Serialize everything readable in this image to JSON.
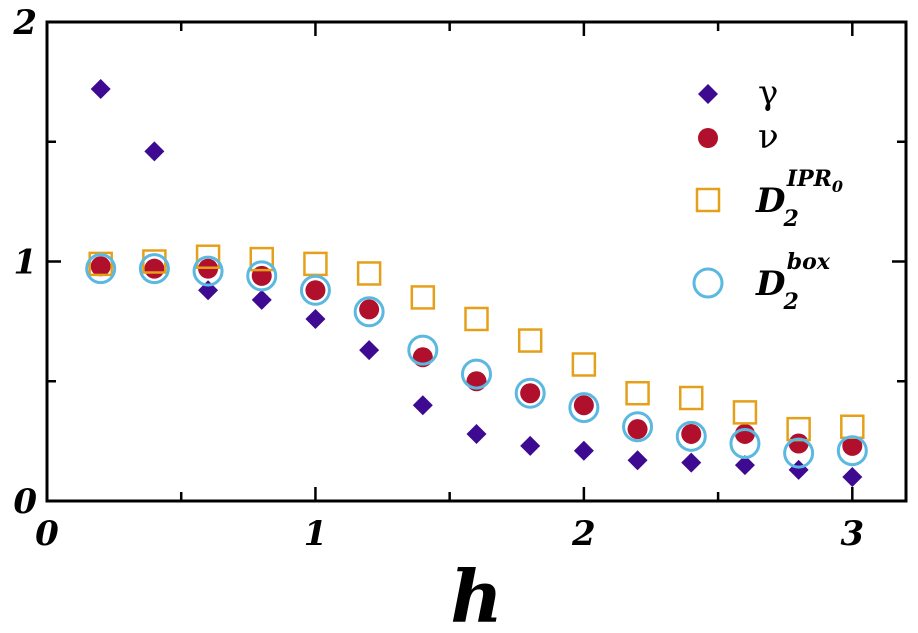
{
  "chart_data": {
    "type": "scatter",
    "title": "",
    "xlabel": "h",
    "ylabel": "",
    "xlim": [
      0,
      3.2
    ],
    "ylim": [
      0,
      2
    ],
    "x_ticks": [
      "0",
      "1",
      "2",
      "3"
    ],
    "y_ticks": [
      "0",
      "1",
      "2"
    ],
    "legend_position": "top-right",
    "series": [
      {
        "name": "γ",
        "marker": "diamond",
        "color": "#3d0a91",
        "x": [
          0.2,
          0.4,
          0.6,
          0.8,
          1.0,
          1.2,
          1.4,
          1.6,
          1.8,
          2.0,
          2.2,
          2.4,
          2.6,
          2.8,
          3.0
        ],
        "y": [
          1.72,
          1.46,
          0.88,
          0.84,
          0.76,
          0.63,
          0.4,
          0.28,
          0.23,
          0.21,
          0.17,
          0.16,
          0.15,
          0.13,
          0.1
        ]
      },
      {
        "name": "ν",
        "marker": "filled-circle",
        "color": "#b0102b",
        "x": [
          0.2,
          0.4,
          0.6,
          0.8,
          1.0,
          1.2,
          1.4,
          1.6,
          1.8,
          2.0,
          2.2,
          2.4,
          2.6,
          2.8,
          3.0
        ],
        "y": [
          0.98,
          0.97,
          0.97,
          0.94,
          0.88,
          0.8,
          0.6,
          0.5,
          0.45,
          0.4,
          0.3,
          0.28,
          0.28,
          0.24,
          0.23
        ]
      },
      {
        "name": "D2 IPR0",
        "label_main": "D",
        "label_sub": "2",
        "label_sup": "IPR",
        "label_sup_sub": "0",
        "marker": "open-square",
        "color": "#e5a01a",
        "x": [
          0.2,
          0.4,
          0.6,
          0.8,
          1.0,
          1.2,
          1.4,
          1.6,
          1.8,
          2.0,
          2.2,
          2.4,
          2.6,
          2.8,
          3.0
        ],
        "y": [
          0.99,
          1.0,
          1.02,
          1.01,
          0.99,
          0.95,
          0.85,
          0.76,
          0.67,
          0.57,
          0.45,
          0.43,
          0.37,
          0.3,
          0.31
        ]
      },
      {
        "name": "D2 box",
        "label_main": "D",
        "label_sub": "2",
        "label_sup": "box",
        "marker": "open-circle",
        "color": "#5bb8e0",
        "x": [
          0.2,
          0.4,
          0.6,
          0.8,
          1.0,
          1.2,
          1.4,
          1.6,
          1.8,
          2.0,
          2.2,
          2.4,
          2.6,
          2.8,
          3.0
        ],
        "y": [
          0.97,
          0.97,
          0.96,
          0.94,
          0.88,
          0.79,
          0.63,
          0.53,
          0.45,
          0.39,
          0.31,
          0.27,
          0.24,
          0.2,
          0.21
        ]
      }
    ]
  }
}
